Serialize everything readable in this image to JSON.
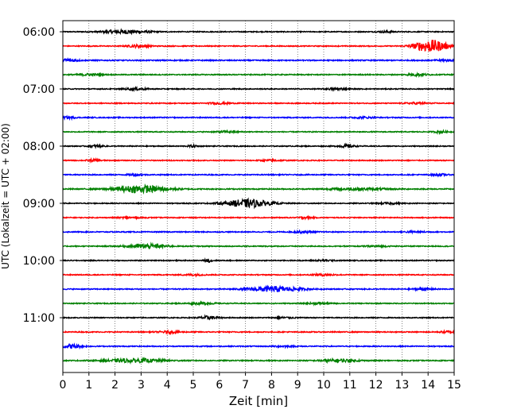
{
  "chart_data": {
    "type": "line",
    "title": "",
    "xlabel": "Zeit  [min]",
    "ylabel": "UTC (Lokalzeit = UTC + 02:00)",
    "xlim": [
      0,
      15
    ],
    "x_ticks": [
      0,
      1,
      2,
      3,
      4,
      5,
      6,
      7,
      8,
      9,
      10,
      11,
      12,
      13,
      14,
      15
    ],
    "y_ticks": [
      {
        "label": "06:00",
        "row": 0
      },
      {
        "label": "07:00",
        "row": 4
      },
      {
        "label": "08:00",
        "row": 8
      },
      {
        "label": "09:00",
        "row": 12
      },
      {
        "label": "10:00",
        "row": 16
      },
      {
        "label": "11:00",
        "row": 20
      }
    ],
    "grid": "vertical dotted at each minute",
    "trace_colors": [
      "#000000",
      "#ff0000",
      "#0000ff",
      "#008000"
    ],
    "series": [
      {
        "start": "06:00",
        "color": "#000000",
        "noise": 0.3,
        "events": [
          {
            "t": 2.4,
            "amp": 1.1,
            "width": 0.6
          },
          {
            "t": 12.4,
            "amp": 0.5,
            "width": 0.2
          }
        ]
      },
      {
        "start": "06:15",
        "color": "#ff0000",
        "noise": 0.3,
        "events": [
          {
            "t": 2.9,
            "amp": 0.8,
            "width": 0.3
          },
          {
            "t": 14.1,
            "amp": 4.0,
            "width": 0.45
          }
        ]
      },
      {
        "start": "06:30",
        "color": "#0000ff",
        "noise": 0.35,
        "events": [
          {
            "t": 0.2,
            "amp": 1.0,
            "width": 0.25
          },
          {
            "t": 14.6,
            "amp": 0.6,
            "width": 0.2
          }
        ]
      },
      {
        "start": "06:45",
        "color": "#008000",
        "noise": 0.32,
        "events": [
          {
            "t": 1.0,
            "amp": 0.6,
            "width": 0.3
          },
          {
            "t": 13.6,
            "amp": 0.8,
            "width": 0.25
          }
        ]
      },
      {
        "start": "07:00",
        "color": "#000000",
        "noise": 0.3,
        "events": [
          {
            "t": 2.8,
            "amp": 0.6,
            "width": 0.3
          },
          {
            "t": 10.5,
            "amp": 0.5,
            "width": 0.3
          }
        ]
      },
      {
        "start": "07:15",
        "color": "#ff0000",
        "noise": 0.3,
        "events": [
          {
            "t": 6.0,
            "amp": 0.5,
            "width": 0.3
          },
          {
            "t": 13.6,
            "amp": 0.5,
            "width": 0.3
          }
        ]
      },
      {
        "start": "07:30",
        "color": "#0000ff",
        "noise": 0.32,
        "events": [
          {
            "t": 0.2,
            "amp": 0.6,
            "width": 0.2
          },
          {
            "t": 11.5,
            "amp": 0.4,
            "width": 0.3
          }
        ]
      },
      {
        "start": "07:45",
        "color": "#008000",
        "noise": 0.3,
        "events": [
          {
            "t": 6.3,
            "amp": 0.5,
            "width": 0.3
          },
          {
            "t": 14.5,
            "amp": 0.6,
            "width": 0.2
          }
        ]
      },
      {
        "start": "08:00",
        "color": "#000000",
        "noise": 0.3,
        "events": [
          {
            "t": 1.3,
            "amp": 0.6,
            "width": 0.2
          },
          {
            "t": 5.0,
            "amp": 0.6,
            "width": 0.15
          },
          {
            "t": 10.9,
            "amp": 0.9,
            "width": 0.2
          }
        ]
      },
      {
        "start": "08:15",
        "color": "#ff0000",
        "noise": 0.3,
        "events": [
          {
            "t": 1.2,
            "amp": 0.6,
            "width": 0.2
          },
          {
            "t": 8.0,
            "amp": 0.4,
            "width": 0.3
          }
        ]
      },
      {
        "start": "08:30",
        "color": "#0000ff",
        "noise": 0.32,
        "events": [
          {
            "t": 2.8,
            "amp": 0.6,
            "width": 0.2
          },
          {
            "t": 14.4,
            "amp": 0.6,
            "width": 0.2
          }
        ]
      },
      {
        "start": "08:45",
        "color": "#008000",
        "noise": 0.35,
        "events": [
          {
            "t": 3.0,
            "amp": 2.3,
            "width": 0.7
          },
          {
            "t": 11.3,
            "amp": 0.6,
            "width": 0.8
          }
        ]
      },
      {
        "start": "09:00",
        "color": "#000000",
        "noise": 0.3,
        "events": [
          {
            "t": 7.1,
            "amp": 2.6,
            "width": 0.6
          },
          {
            "t": 12.5,
            "amp": 0.4,
            "width": 0.3
          }
        ]
      },
      {
        "start": "09:15",
        "color": "#ff0000",
        "noise": 0.3,
        "events": [
          {
            "t": 9.3,
            "amp": 0.5,
            "width": 0.2
          },
          {
            "t": 2.6,
            "amp": 0.4,
            "width": 0.3
          }
        ]
      },
      {
        "start": "09:30",
        "color": "#0000ff",
        "noise": 0.32,
        "events": [
          {
            "t": 9.2,
            "amp": 0.5,
            "width": 0.3
          },
          {
            "t": 13.5,
            "amp": 0.4,
            "width": 0.3
          }
        ]
      },
      {
        "start": "09:45",
        "color": "#008000",
        "noise": 0.32,
        "events": [
          {
            "t": 3.2,
            "amp": 1.4,
            "width": 0.5
          },
          {
            "t": 12.0,
            "amp": 0.4,
            "width": 0.3
          }
        ]
      },
      {
        "start": "10:00",
        "color": "#000000",
        "noise": 0.3,
        "events": [
          {
            "t": 5.6,
            "amp": 0.9,
            "width": 0.12
          },
          {
            "t": 10.0,
            "amp": 0.4,
            "width": 0.3
          }
        ]
      },
      {
        "start": "10:15",
        "color": "#ff0000",
        "noise": 0.3,
        "events": [
          {
            "t": 10.0,
            "amp": 0.6,
            "width": 0.3
          },
          {
            "t": 5.0,
            "amp": 0.4,
            "width": 0.3
          }
        ]
      },
      {
        "start": "10:30",
        "color": "#0000ff",
        "noise": 0.32,
        "events": [
          {
            "t": 8.1,
            "amp": 1.7,
            "width": 0.7
          },
          {
            "t": 13.8,
            "amp": 0.5,
            "width": 0.3
          }
        ]
      },
      {
        "start": "10:45",
        "color": "#008000",
        "noise": 0.3,
        "events": [
          {
            "t": 5.3,
            "amp": 0.5,
            "width": 0.4
          },
          {
            "t": 9.8,
            "amp": 0.5,
            "width": 0.3
          }
        ]
      },
      {
        "start": "11:00",
        "color": "#000000",
        "noise": 0.3,
        "events": [
          {
            "t": 5.6,
            "amp": 1.0,
            "width": 0.25
          },
          {
            "t": 8.5,
            "amp": 0.4,
            "width": 0.3
          }
        ]
      },
      {
        "start": "11:15",
        "color": "#ff0000",
        "noise": 0.32,
        "events": [
          {
            "t": 4.1,
            "amp": 0.6,
            "width": 0.3
          },
          {
            "t": 14.8,
            "amp": 0.7,
            "width": 0.2
          }
        ]
      },
      {
        "start": "11:30",
        "color": "#0000ff",
        "noise": 0.32,
        "events": [
          {
            "t": 0.3,
            "amp": 1.2,
            "width": 0.3
          },
          {
            "t": 8.5,
            "amp": 0.4,
            "width": 0.3
          }
        ]
      },
      {
        "start": "11:45",
        "color": "#008000",
        "noise": 0.32,
        "events": [
          {
            "t": 2.8,
            "amp": 1.1,
            "width": 0.8
          },
          {
            "t": 10.6,
            "amp": 0.9,
            "width": 0.5
          }
        ]
      }
    ]
  }
}
